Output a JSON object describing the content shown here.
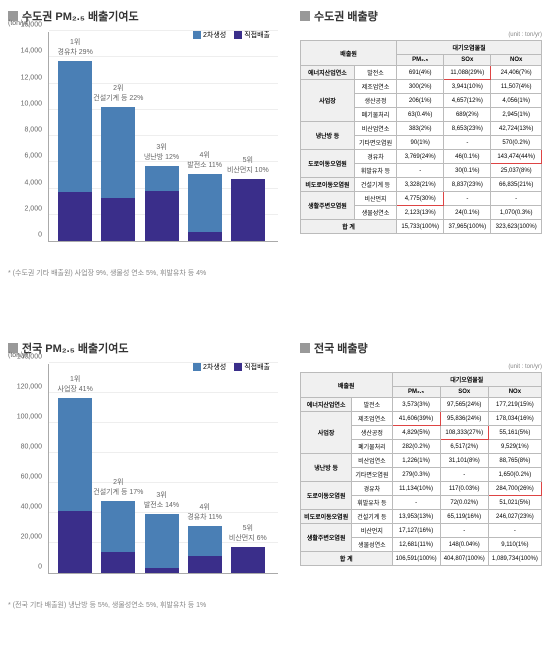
{
  "colors": {
    "secondary": "#4a7fb5",
    "direct": "#3a2e8a",
    "grid": "#eeeeee",
    "axis": "#aaaaaa",
    "highlight": "#d44444"
  },
  "chart1": {
    "title": "수도권 PM₂.₅ 배출기여도",
    "ylabel": "(ton/yr)",
    "ymax": 16000,
    "ystep": 2000,
    "legend": [
      "2차생성",
      "직접배출"
    ],
    "bars": [
      {
        "rank": "1위",
        "label": "경유차 29%",
        "direct": 3700,
        "secondary": 10000
      },
      {
        "rank": "2위",
        "label": "건설기계 등 22%",
        "direct": 3300,
        "secondary": 6900
      },
      {
        "rank": "3위",
        "label": "냉난방 12%",
        "direct": 3800,
        "secondary": 1900
      },
      {
        "rank": "4위",
        "label": "발전소 11%",
        "direct": 700,
        "secondary": 4400
      },
      {
        "rank": "5위",
        "label": "비산먼지 10%",
        "direct": 4700,
        "secondary": 0
      }
    ],
    "footnote": "* (수도권 기타 배출원) 사업장 9%,  생물성 연소 5%,  휘발유차 등 4%"
  },
  "chart2": {
    "title": "전국 PM₂.₅ 배출기여도",
    "ylabel": "(ton/yr)",
    "ymax": 140000,
    "ystep": 20000,
    "legend": [
      "2차생성",
      "직접배출"
    ],
    "bars": [
      {
        "rank": "1위",
        "label": "사업장 41%",
        "direct": 41600,
        "secondary": 75000
      },
      {
        "rank": "2위",
        "label": "건설기계 등 17%",
        "direct": 14000,
        "secondary": 34000
      },
      {
        "rank": "3위",
        "label": "발전소 14%",
        "direct": 3600,
        "secondary": 36000
      },
      {
        "rank": "4위",
        "label": "경유차 11%",
        "direct": 11300,
        "secondary": 20000
      },
      {
        "rank": "5위",
        "label": "비산먼지 6%",
        "direct": 17100,
        "secondary": 0
      }
    ],
    "footnote": "* (전국 기타 배출원) 냉난방 등 5%,  생물성연소 5%,  휘발유차 등 1%"
  },
  "table1": {
    "title": "수도권 배출량",
    "unit": "(unit : ton/yr)",
    "colgroups": [
      "배출원",
      "대기오염물질"
    ],
    "pollutants": [
      "PM₂.₅",
      "SOx",
      "NOx"
    ],
    "groups": [
      {
        "name": "에너지산업연소",
        "rows": [
          {
            "label": "발전소",
            "pm": "691(4%)",
            "sox": "11,088(29%)",
            "nox": "24,406(7%)",
            "hl": "sox"
          }
        ]
      },
      {
        "name": "사업장",
        "rows": [
          {
            "label": "제조업연소",
            "pm": "300(2%)",
            "sox": "3,941(10%)",
            "nox": "11,507(4%)"
          },
          {
            "label": "생산공정",
            "pm": "206(1%)",
            "sox": "4,657(12%)",
            "nox": "4,056(1%)"
          },
          {
            "label": "폐기물처리",
            "pm": "63(0.4%)",
            "sox": "689(2%)",
            "nox": "2,945(1%)"
          }
        ]
      },
      {
        "name": "냉난방 등",
        "rows": [
          {
            "label": "비산업연소",
            "pm": "383(2%)",
            "sox": "8,653(23%)",
            "nox": "42,724(13%)"
          },
          {
            "label": "기타면오염원",
            "pm": "90(1%)",
            "sox": "-",
            "nox": "570(0.2%)"
          }
        ]
      },
      {
        "name": "도로이동오염원",
        "rows": [
          {
            "label": "경유차",
            "pm": "3,769(24%)",
            "sox": "46(0.1%)",
            "nox": "143,474(44%)",
            "hl": "nox"
          },
          {
            "label": "휘발유차 등",
            "pm": "-",
            "sox": "30(0.1%)",
            "nox": "25,037(8%)"
          }
        ]
      },
      {
        "name": "비도로이동오염원",
        "rows": [
          {
            "label": "건설기계 등",
            "pm": "3,328(21%)",
            "sox": "8,837(23%)",
            "nox": "66,835(21%)"
          }
        ]
      },
      {
        "name": "생활주변오염원",
        "rows": [
          {
            "label": "비산먼지",
            "pm": "4,775(30%)",
            "sox": "-",
            "nox": "-",
            "hl": "pm"
          },
          {
            "label": "생물성연소",
            "pm": "2,123(13%)",
            "sox": "24(0.1%)",
            "nox": "1,070(0.3%)"
          }
        ]
      }
    ],
    "total": {
      "label": "합  계",
      "pm": "15,733(100%)",
      "sox": "37,965(100%)",
      "nox": "323,623(100%)"
    }
  },
  "table2": {
    "title": "전국 배출량",
    "unit": "(unit : ton/yr)",
    "colgroups": [
      "배출원",
      "대기오염물질"
    ],
    "pollutants": [
      "PM₂.₅",
      "SOx",
      "NOx"
    ],
    "groups": [
      {
        "name": "에너지산업연소",
        "rows": [
          {
            "label": "발전소",
            "pm": "3,573(3%)",
            "sox": "97,565(24%)",
            "nox": "177,219(15%)"
          }
        ]
      },
      {
        "name": "사업장",
        "rows": [
          {
            "label": "제조업연소",
            "pm": "41,606(39%)",
            "sox": "95,836(24%)",
            "nox": "178,034(16%)",
            "hl": "pm"
          },
          {
            "label": "생산공정",
            "pm": "4,829(5%)",
            "sox": "108,333(27%)",
            "nox": "55,161(5%)",
            "hl": "sox"
          },
          {
            "label": "폐기물처리",
            "pm": "282(0.2%)",
            "sox": "6,517(2%)",
            "nox": "9,529(1%)"
          }
        ]
      },
      {
        "name": "냉난방 등",
        "rows": [
          {
            "label": "비산업연소",
            "pm": "1,226(1%)",
            "sox": "31,101(8%)",
            "nox": "88,765(8%)"
          },
          {
            "label": "기타면오염원",
            "pm": "279(0.3%)",
            "sox": "-",
            "nox": "1,650(0.2%)"
          }
        ]
      },
      {
        "name": "도로이동오염원",
        "rows": [
          {
            "label": "경유차",
            "pm": "11,134(10%)",
            "sox": "117(0.03%)",
            "nox": "284,700(26%)",
            "hl": "nox"
          },
          {
            "label": "휘발유차 등",
            "pm": "-",
            "sox": "72(0.02%)",
            "nox": "51,021(5%)"
          }
        ]
      },
      {
        "name": "비도로이동오염원",
        "rows": [
          {
            "label": "건설기계 등",
            "pm": "13,953(13%)",
            "sox": "65,119(16%)",
            "nox": "246,027(23%)"
          }
        ]
      },
      {
        "name": "생활주변오염원",
        "rows": [
          {
            "label": "비산먼지",
            "pm": "17,127(16%)",
            "sox": "-",
            "nox": "-"
          },
          {
            "label": "생물성연소",
            "pm": "12,681(11%)",
            "sox": "148(0.04%)",
            "nox": "9,110(1%)"
          }
        ]
      }
    ],
    "total": {
      "label": "합  계",
      "pm": "106,591(100%)",
      "sox": "404,807(100%)",
      "nox": "1,089,734(100%)"
    }
  }
}
